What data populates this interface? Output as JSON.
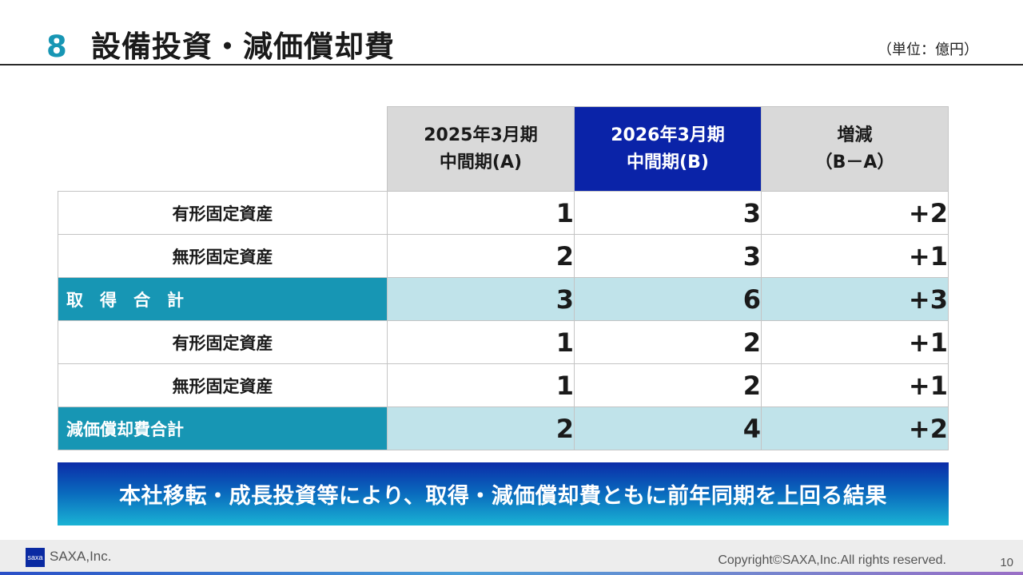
{
  "header": {
    "section_number": "8",
    "title": "設備投資・減価償却費",
    "unit": "（単位：億円）"
  },
  "table": {
    "columns": [
      {
        "line1": "2025年3月期",
        "line2": "中間期(A)"
      },
      {
        "line1": "2026年3月期",
        "line2": "中間期(B)"
      },
      {
        "line1": "増減",
        "line2": "（B－A）"
      }
    ],
    "rows": [
      {
        "label": "有形固定資産",
        "a": "1",
        "b": "3",
        "diff": "+2",
        "subtotal": false
      },
      {
        "label": "無形固定資産",
        "a": "2",
        "b": "3",
        "diff": "+1",
        "subtotal": false
      },
      {
        "label": "取　得　合　計",
        "a": "3",
        "b": "6",
        "diff": "+3",
        "subtotal": true
      },
      {
        "label": "有形固定資産",
        "a": "1",
        "b": "2",
        "diff": "+1",
        "subtotal": false
      },
      {
        "label": "無形固定資産",
        "a": "1",
        "b": "2",
        "diff": "+1",
        "subtotal": false
      },
      {
        "label": "減価償却費合計",
        "a": "2",
        "b": "4",
        "diff": "+2",
        "subtotal": true
      }
    ]
  },
  "summary": {
    "text": "本社移転・成長投資等により、取得・減価償却費ともに前年同期を上回る結果"
  },
  "footer": {
    "logo_mark": "saxa",
    "company": "SAXA,Inc.",
    "copyright": "Copyright©SAXA,Inc.All rights reserved.",
    "page_number": "10"
  },
  "colors": {
    "accent_teal": "#1796b4",
    "header_blue": "#0a23a8",
    "header_gray": "#d9d9d9",
    "subtotal_fill": "#c0e3ea"
  }
}
